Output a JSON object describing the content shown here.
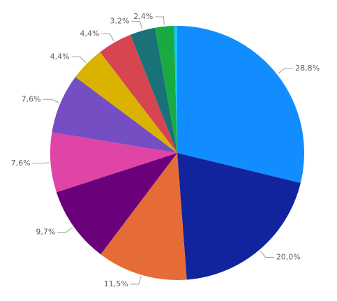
{
  "chart_data": {
    "type": "pie",
    "values": [
      28.8,
      20.0,
      11.5,
      9.7,
      7.6,
      7.6,
      4.4,
      4.4,
      3.2,
      2.4,
      0.4
    ],
    "value_labels": [
      "28,8%",
      "20,0%",
      "11,5%",
      "9,7%",
      "7,6%",
      "7,6%",
      "4,4%",
      "4,4%",
      "3,2%",
      "2,4%",
      null
    ],
    "colors": [
      "#118dff",
      "#12239e",
      "#e66c37",
      "#6b007b",
      "#e044a7",
      "#744ec2",
      "#d9b300",
      "#d64550",
      "#197278",
      "#1aab40",
      "#15c6f4"
    ]
  }
}
